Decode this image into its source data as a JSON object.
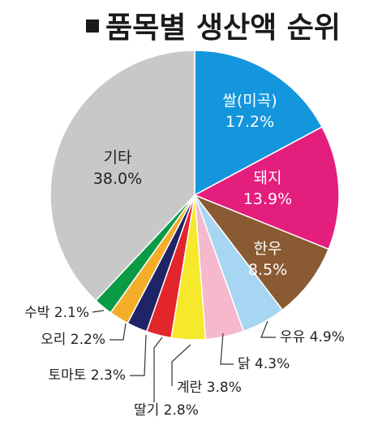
{
  "chart_data": {
    "type": "pie",
    "title": "품목별 생산액 순위",
    "slices": [
      {
        "name": "쌀(미곡)",
        "value": 17.2,
        "label": "17.2%",
        "color": "#1496dc"
      },
      {
        "name": "돼지",
        "value": 13.9,
        "label": "13.9%",
        "color": "#e41e7d"
      },
      {
        "name": "한우",
        "value": 8.5,
        "label": "8.5%",
        "color": "#8a5a32"
      },
      {
        "name": "우유",
        "value": 4.9,
        "label": "4.9%",
        "color": "#a7d6f2"
      },
      {
        "name": "닭",
        "value": 4.3,
        "label": "4.3%",
        "color": "#f5b8cc"
      },
      {
        "name": "계란",
        "value": 3.8,
        "label": "3.8%",
        "color": "#f6e82a"
      },
      {
        "name": "딸기",
        "value": 2.8,
        "label": "2.8%",
        "color": "#e2262c"
      },
      {
        "name": "토마토",
        "value": 2.3,
        "label": "2.3%",
        "color": "#1e2466"
      },
      {
        "name": "오리",
        "value": 2.2,
        "label": "2.2%",
        "color": "#f4ae2a"
      },
      {
        "name": "수박",
        "value": 2.1,
        "label": "2.1%",
        "color": "#0b9b46"
      },
      {
        "name": "기타",
        "value": 38.0,
        "label": "38.0%",
        "color": "#c8c8c8"
      }
    ]
  }
}
